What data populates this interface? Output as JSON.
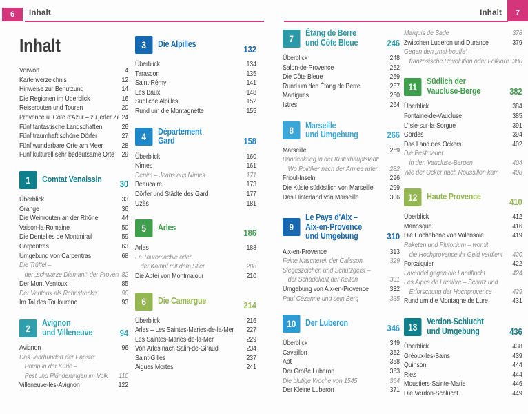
{
  "header": {
    "left_page_number": "6",
    "right_page_number": "7",
    "left_label": "Inhalt",
    "right_label": "Inhalt",
    "accent_color": "#d4367b"
  },
  "columns": [
    {
      "title": "Inhalt",
      "blocks": [
        {
          "items": [
            {
              "text": "Vorwort",
              "page": "4"
            },
            {
              "text": "Kartenverzeichnis",
              "page": "12"
            },
            {
              "text": "Hinweise zur Benutzung",
              "page": "14"
            },
            {
              "text": "Die Regionen im Überblick",
              "page": "16"
            },
            {
              "text": "Reiserouten und Touren",
              "page": "20"
            },
            {
              "text": "Provence u. Côte d'Azur – zu jeder Zeit",
              "page": "24"
            },
            {
              "text": "Fünf fantastische Landschaften",
              "page": "26"
            },
            {
              "text": "Fünf traumhaft schöne Dörfer",
              "page": "27"
            },
            {
              "text": "Fünf wunderbare Orte am Meer",
              "page": "28"
            },
            {
              "text": "Fünf kulturell sehr bedeutsame Orte",
              "page": "29"
            }
          ]
        },
        {
          "chapter": {
            "number": "1",
            "title_lines": [
              "Comtat Venaissin"
            ],
            "page": "30",
            "color": "#0f7f8b"
          },
          "items": [
            {
              "text": "Überblick",
              "page": "33"
            },
            {
              "text": "Orange",
              "page": "36"
            },
            {
              "text": "Die Weinrouten an der Rhône",
              "page": "44"
            },
            {
              "text": "Vaison-la-Romaine",
              "page": "50"
            },
            {
              "text": "Die Dentelles de Montmirail",
              "page": "59"
            },
            {
              "text": "Carpentras",
              "page": "63"
            },
            {
              "text": "Umgebung von Carpentras",
              "page": "68"
            },
            {
              "text": "Die Trüffel –",
              "page": "",
              "italic": true
            },
            {
              "text": "der „schwarze Diamant“ der Provence",
              "page": "82",
              "italic": true,
              "indent": true
            },
            {
              "text": "Der Mont Ventoux",
              "page": "85"
            },
            {
              "text": "Der Ventoux als Rennstrecke",
              "page": "90",
              "italic": true
            },
            {
              "text": "Im Tal des Toulourenc",
              "page": "93"
            }
          ]
        },
        {
          "chapter": {
            "number": "2",
            "title_lines": [
              "Avignon",
              "und Villeneuve"
            ],
            "page": "94",
            "color": "#2f9fae"
          },
          "items": [
            {
              "text": "Avignon",
              "page": "96"
            },
            {
              "text": "Das Jahrhundert der Päpste:",
              "page": "",
              "italic": true
            },
            {
              "text": "Pomp in der Kurie –",
              "page": "",
              "italic": true,
              "indent": true
            },
            {
              "text": "Pest und Plünderungen im Volk",
              "page": "110",
              "italic": true,
              "indent": true
            },
            {
              "text": "Villeneuve-lès-Avignon",
              "page": "122"
            }
          ]
        }
      ]
    },
    {
      "blocks": [
        {
          "chapter": {
            "number": "3",
            "title_lines": [
              "Die Alpilles"
            ],
            "page": "132",
            "color": "#1668b0"
          },
          "items": [
            {
              "text": "Überblick",
              "page": "134"
            },
            {
              "text": "Tarascon",
              "page": "135"
            },
            {
              "text": "Saint-Rémy",
              "page": "141"
            },
            {
              "text": "Les Baux",
              "page": "148"
            },
            {
              "text": "Südliche Alpilles",
              "page": "152"
            },
            {
              "text": "Rund um die Montagnette",
              "page": "155"
            }
          ]
        },
        {
          "chapter": {
            "number": "4",
            "title_lines": [
              "Département",
              "Gard"
            ],
            "page": "158",
            "color": "#1f87c8"
          },
          "items": [
            {
              "text": "Überblick",
              "page": "160"
            },
            {
              "text": "Nîmes",
              "page": "161"
            },
            {
              "text": "Denim – Jeans aus Nîmes",
              "page": "171",
              "italic": true
            },
            {
              "text": "Beaucaire",
              "page": "173"
            },
            {
              "text": "Dörfer und Städte des Gard",
              "page": "177"
            },
            {
              "text": "Uzès",
              "page": "181"
            }
          ]
        },
        {
          "chapter": {
            "number": "5",
            "title_lines": [
              "Arles"
            ],
            "page": "186",
            "color": "#3f9f4c"
          },
          "items": [
            {
              "text": "Arles",
              "page": "188"
            },
            {
              "text": "La Tauromachie oder",
              "page": "",
              "italic": true
            },
            {
              "text": "der Kampf mit dem Stier",
              "page": "208",
              "italic": true,
              "indent": true
            },
            {
              "text": "Die Abtei von Montmajour",
              "page": "210"
            }
          ]
        },
        {
          "chapter": {
            "number": "6",
            "title_lines": [
              "Die Camargue"
            ],
            "page": "214",
            "color": "#95b751"
          },
          "items": [
            {
              "text": "Überblick",
              "page": "216"
            },
            {
              "text": "Arles – Les Saintes-Maries-de-la-Mer",
              "page": "227"
            },
            {
              "text": "Les Saintes-Maries-de-la-Mer",
              "page": "229"
            },
            {
              "text": "Von Arles nach Salin-de-Giraud",
              "page": "234"
            },
            {
              "text": "Saint-Gilles",
              "page": "237"
            },
            {
              "text": "Aigues Mortes",
              "page": "241"
            }
          ]
        }
      ]
    },
    {
      "blocks": [
        {
          "chapter": {
            "number": "7",
            "title_lines": [
              "Étang de Berre",
              "und Côte Bleue"
            ],
            "page": "246",
            "color": "#2a9aa8"
          },
          "items": [
            {
              "text": "Überblick",
              "page": "248"
            },
            {
              "text": "Salon-de-Provence",
              "page": "252"
            },
            {
              "text": "Die Côte Bleue",
              "page": "259"
            },
            {
              "text": "Rund um den Étang de Berre",
              "page": "257"
            },
            {
              "text": "Martigues",
              "page": "260"
            },
            {
              "text": "Istres",
              "page": "264"
            }
          ]
        },
        {
          "chapter": {
            "number": "8",
            "title_lines": [
              "Marseille",
              "und Umgebung"
            ],
            "page": "266",
            "color": "#3ba7d9"
          },
          "items": [
            {
              "text": "Marseille",
              "page": "269"
            },
            {
              "text": "Bandenkrieg in der Kulturhauptstadt:",
              "page": "",
              "italic": true
            },
            {
              "text": "Wo Politiker nach der Armee rufen",
              "page": "282",
              "italic": true,
              "indent": true
            },
            {
              "text": "Frioul-Inseln",
              "page": "296"
            },
            {
              "text": "Die Küste südöstlich von Marseille",
              "page": "299"
            },
            {
              "text": "Das Hinterland von Marseille",
              "page": "306"
            }
          ]
        },
        {
          "chapter": {
            "number": "9",
            "title_lines": [
              "Le Pays d'Aix –",
              "Aix-en-Provence",
              "und Umgebung"
            ],
            "page": "310",
            "color": "#1668b0"
          },
          "items": [
            {
              "text": "Aix-en-Provence",
              "page": "313"
            },
            {
              "text": "Feine Nascherei: der Calisson",
              "page": "329",
              "italic": true
            },
            {
              "text": "Siegeszeichen und Schutzgeist –",
              "page": "",
              "italic": true
            },
            {
              "text": "der Schädelkult der Kelten",
              "page": "331",
              "italic": true,
              "indent": true
            },
            {
              "text": "Umgebung von Aix-en-Provence",
              "page": "332"
            },
            {
              "text": "Paul Cézanne und sein Berg",
              "page": "335",
              "italic": true
            }
          ]
        },
        {
          "chapter": {
            "number": "10",
            "title_lines": [
              "Der Luberon"
            ],
            "page": "346",
            "color": "#2d9bd4"
          },
          "items": [
            {
              "text": "Überblick",
              "page": "349"
            },
            {
              "text": "Cavaillon",
              "page": "352"
            },
            {
              "text": "Apt",
              "page": "358"
            },
            {
              "text": "Der Große Luberon",
              "page": "363"
            },
            {
              "text": "Die blutige Woche von 1545",
              "page": "364",
              "italic": true
            },
            {
              "text": "Der Kleine Luberon",
              "page": "371"
            }
          ]
        }
      ]
    },
    {
      "blocks": [
        {
          "items": [
            {
              "text": "Marquis de Sade",
              "page": "378",
              "italic": true
            },
            {
              "text": "Zwischen Luberon und Durance",
              "page": "379"
            },
            {
              "text": "Gegen den „mal-bouffe“ –",
              "page": "",
              "italic": true
            },
            {
              "text": "französische Revolution oder Folklore?",
              "page": "380",
              "italic": true,
              "indent": true
            }
          ]
        },
        {
          "chapter": {
            "number": "11",
            "title_lines": [
              "Südlich der",
              "Vaucluse-Berge"
            ],
            "page": "382",
            "color": "#3f9f4c"
          },
          "items": [
            {
              "text": "Überblick",
              "page": "384"
            },
            {
              "text": "Fontaine-de-Vaucluse",
              "page": "385"
            },
            {
              "text": "L'Isle-sur-la-Sorgue",
              "page": "391"
            },
            {
              "text": "Gordes",
              "page": "394"
            },
            {
              "text": "Das Land des Ockers",
              "page": "402"
            },
            {
              "text": "Die Pestmauer",
              "page": "",
              "italic": true
            },
            {
              "text": "in den Vaucluse-Bergen",
              "page": "404",
              "italic": true,
              "indent": true
            },
            {
              "text": "Wie der Ocker nach Roussillon kam",
              "page": "408",
              "italic": true
            }
          ]
        },
        {
          "chapter": {
            "number": "12",
            "title_lines": [
              "Haute Provence"
            ],
            "page": "410",
            "color": "#95b751"
          },
          "items": [
            {
              "text": "Überblick",
              "page": "412"
            },
            {
              "text": "Manosque",
              "page": "416"
            },
            {
              "text": "Die Hochebene von Valensole",
              "page": "419"
            },
            {
              "text": "Raketen und Plutonium – womit",
              "page": "",
              "italic": true
            },
            {
              "text": "die Hochprovence ihr Geld verdient",
              "page": "420",
              "italic": true,
              "indent": true
            },
            {
              "text": "Forcalquier",
              "page": "422"
            },
            {
              "text": "Lavendel gegen die Landflucht",
              "page": "424",
              "italic": true
            },
            {
              "text": "Les Alpes de Lumière – Schutz und",
              "page": "",
              "italic": true
            },
            {
              "text": "Erforschung der Hochprovence",
              "page": "429",
              "italic": true,
              "indent": true
            },
            {
              "text": "Rund um die Montagne de Lure",
              "page": "431"
            }
          ]
        },
        {
          "chapter": {
            "number": "13",
            "title_lines": [
              "Verdon-Schlucht",
              "und Umgebung"
            ],
            "page": "436",
            "color": "#0f7f8b"
          },
          "items": [
            {
              "text": "Überblick",
              "page": "438"
            },
            {
              "text": "Gréoux-les-Bains",
              "page": "439"
            },
            {
              "text": "Quinson",
              "page": "444"
            },
            {
              "text": "Riez",
              "page": "444"
            },
            {
              "text": "Moustiers-Sainte-Marie",
              "page": "446"
            },
            {
              "text": "Die Verdon-Schlucht",
              "page": "449"
            }
          ]
        }
      ]
    }
  ]
}
